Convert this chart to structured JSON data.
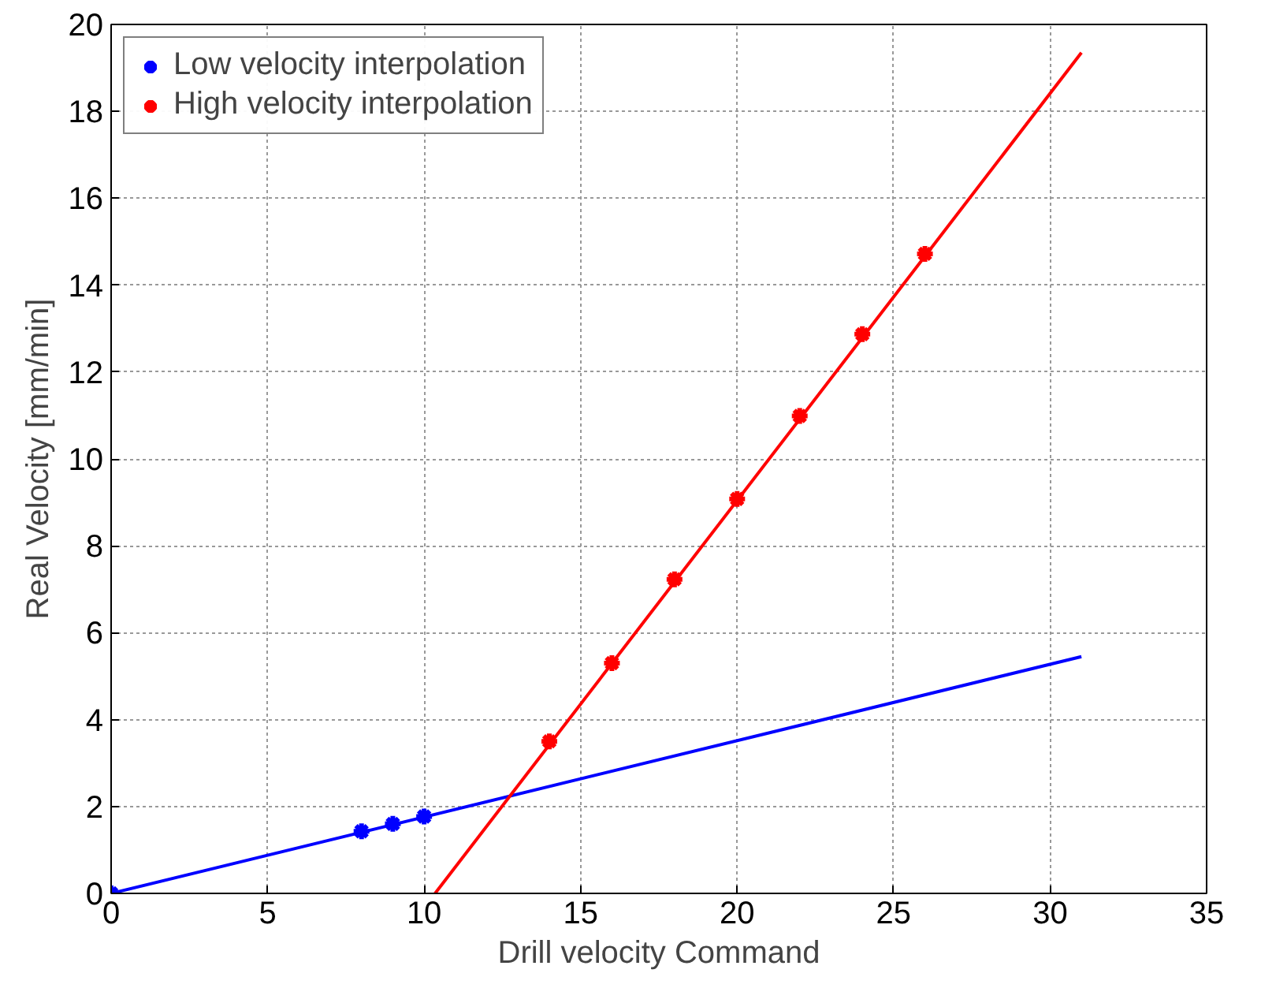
{
  "chart_data": {
    "type": "scatter",
    "xlabel": "Drill velocity Command",
    "ylabel": "Real Velocity [mm/min]",
    "xlim": [
      0,
      35
    ],
    "xticks": [
      0,
      5,
      10,
      15,
      20,
      25,
      30,
      35
    ],
    "ylim": [
      0,
      20
    ],
    "yticks": [
      0,
      2,
      4,
      6,
      8,
      10,
      12,
      14,
      16,
      18,
      20
    ],
    "grid": true,
    "legend": "top left",
    "marker": "cross",
    "series": [
      {
        "name": "Low velocity interpolation",
        "color": "#0000ff",
        "x": [
          0,
          8,
          9,
          10
        ],
        "values": [
          0,
          1.43,
          1.6,
          1.77
        ]
      },
      {
        "name": "High velocity interpolation",
        "color": "#ff0000",
        "x": [
          14,
          16,
          18,
          20,
          22,
          24,
          26
        ],
        "values": [
          3.5,
          5.3,
          7.23,
          9.08,
          10.99,
          12.87,
          14.72
        ]
      },
      {
        "type": "line",
        "marker": "none",
        "color": "#0000ff",
        "x": [
          0,
          31
        ],
        "values": [
          0,
          5.45
        ]
      },
      {
        "type": "line",
        "marker": "none",
        "color": "#ff0000",
        "x": [
          10.35,
          31
        ],
        "values": [
          0,
          19.35
        ]
      }
    ]
  }
}
